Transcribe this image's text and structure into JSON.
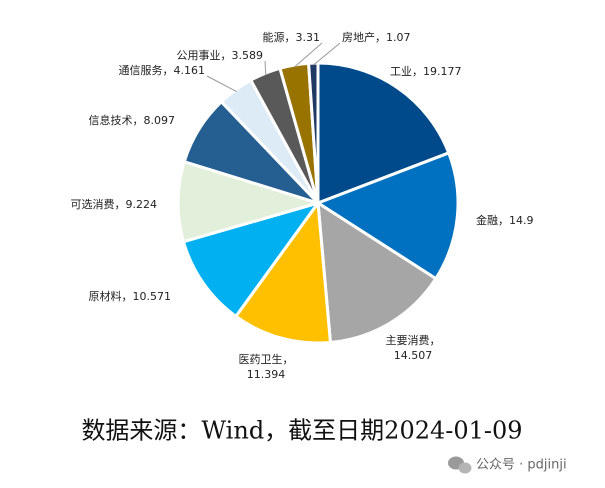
{
  "chart_data": {
    "type": "pie",
    "categories": [
      "工业",
      "金融",
      "主要消费",
      "医药卫生",
      "原材料",
      "可选消费",
      "信息技术",
      "通信服务",
      "公用事业",
      "能源",
      "房地产"
    ],
    "values": [
      19.177,
      14.9,
      14.507,
      11.394,
      10.571,
      9.224,
      8.097,
      4.161,
      3.589,
      3.31,
      1.07
    ],
    "colors": [
      "#004a8c",
      "#0070c0",
      "#a6a6a6",
      "#ffc000",
      "#00b0f0",
      "#e2efda",
      "#255e91",
      "#ddebf7",
      "#595959",
      "#997300",
      "#203864"
    ],
    "label_separator": "，",
    "source": "数据来源：Wind，截至日期2024-01-09",
    "watermark": "公众号 · pdjinji"
  }
}
